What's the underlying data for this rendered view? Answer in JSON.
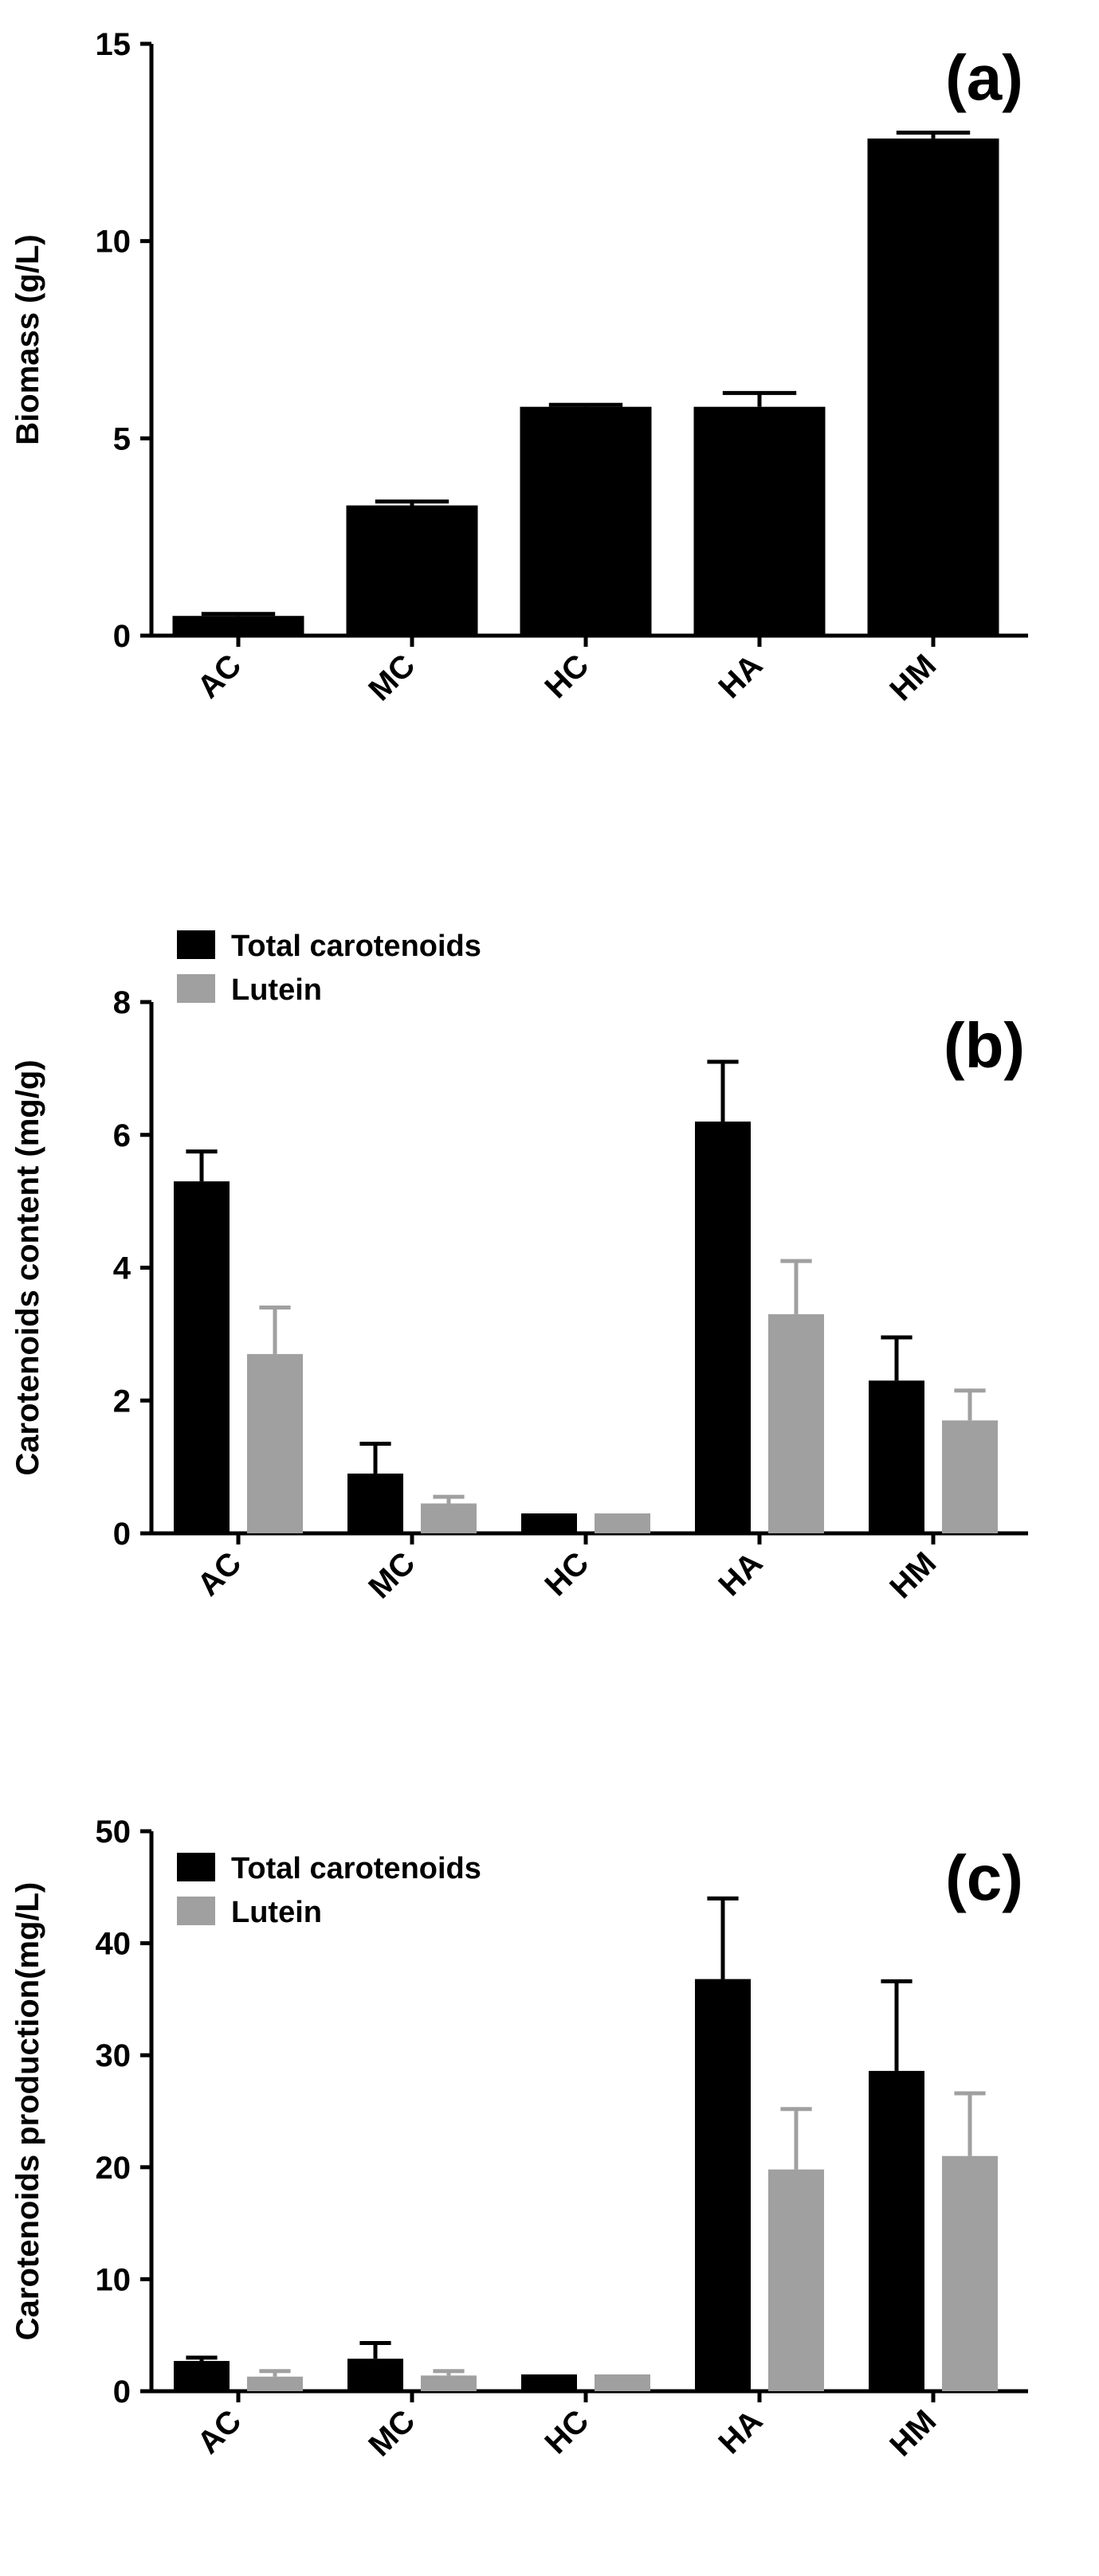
{
  "colors": {
    "total": "#000000",
    "lutein": "#a0a0a0",
    "axis": "#000000"
  },
  "chart_data": [
    {
      "type": "bar",
      "panel": "(a)",
      "ylabel": "Biomass (g/L)",
      "categories": [
        "AC",
        "MC",
        "HC",
        "HA",
        "HM"
      ],
      "ylim": [
        0,
        15
      ],
      "yticks": [
        0,
        5,
        10,
        15
      ],
      "legend": null,
      "series": [
        {
          "name": "Biomass",
          "color": "#000000",
          "values": [
            0.5,
            3.3,
            5.8,
            5.8,
            12.6
          ],
          "errors": [
            0.05,
            0.1,
            0.05,
            0.35,
            0.15
          ]
        }
      ]
    },
    {
      "type": "bar",
      "panel": "(b)",
      "ylabel": "Carotenoids content (mg/g)",
      "categories": [
        "AC",
        "MC",
        "HC",
        "HA",
        "HM"
      ],
      "ylim": [
        0,
        8
      ],
      "yticks": [
        0,
        2,
        4,
        6,
        8
      ],
      "legend": "top-left",
      "series": [
        {
          "name": "Total carotenoids",
          "color": "#000000",
          "values": [
            5.3,
            0.9,
            0.3,
            6.2,
            2.3
          ],
          "errors": [
            0.45,
            0.45,
            0.0,
            0.9,
            0.65
          ]
        },
        {
          "name": "Lutein",
          "color": "#a0a0a0",
          "values": [
            2.7,
            0.45,
            0.3,
            3.3,
            1.7
          ],
          "errors": [
            0.7,
            0.1,
            0.0,
            0.8,
            0.45
          ]
        }
      ]
    },
    {
      "type": "bar",
      "panel": "(c)",
      "ylabel": "Carotenoids production(mg/L)",
      "categories": [
        "AC",
        "MC",
        "HC",
        "HA",
        "HM"
      ],
      "ylim": [
        0,
        50
      ],
      "yticks": [
        0,
        10,
        20,
        30,
        40,
        50
      ],
      "legend": "top-left",
      "series": [
        {
          "name": "Total carotenoids",
          "color": "#000000",
          "values": [
            2.7,
            2.9,
            1.5,
            36.8,
            28.6
          ],
          "errors": [
            0.3,
            1.4,
            0.0,
            7.2,
            8.0
          ]
        },
        {
          "name": "Lutein",
          "color": "#a0a0a0",
          "values": [
            1.3,
            1.4,
            1.5,
            19.8,
            21.0
          ],
          "errors": [
            0.5,
            0.4,
            0.0,
            5.4,
            5.6
          ]
        }
      ]
    }
  ]
}
